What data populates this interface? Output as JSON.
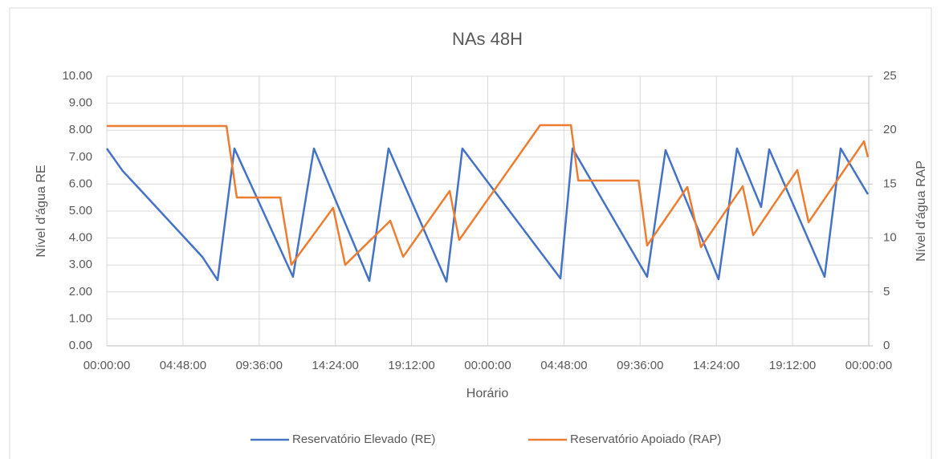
{
  "chart_data": {
    "type": "line",
    "title": "NAs 48H",
    "xlabel": "Horário",
    "ylabel": "Nível d'água RE",
    "y2label": "Nível d'água RAP",
    "xlim": [
      0,
      48
    ],
    "xticks": [
      {
        "value": 0,
        "label": "00:00:00"
      },
      {
        "value": 4.8,
        "label": "04:48:00"
      },
      {
        "value": 9.6,
        "label": "09:36:00"
      },
      {
        "value": 14.4,
        "label": "14:24:00"
      },
      {
        "value": 19.2,
        "label": "19:12:00"
      },
      {
        "value": 24,
        "label": "00:00:00"
      },
      {
        "value": 28.8,
        "label": "04:48:00"
      },
      {
        "value": 33.6,
        "label": "09:36:00"
      },
      {
        "value": 38.4,
        "label": "14:24:00"
      },
      {
        "value": 43.2,
        "label": "19:12:00"
      },
      {
        "value": 48,
        "label": "00:00:00"
      }
    ],
    "ylim": [
      0,
      10
    ],
    "yticks": [
      {
        "value": 0,
        "label": "0.00"
      },
      {
        "value": 1,
        "label": "1.00"
      },
      {
        "value": 2,
        "label": "2.00"
      },
      {
        "value": 3,
        "label": "3.00"
      },
      {
        "value": 4,
        "label": "4.00"
      },
      {
        "value": 5,
        "label": "5.00"
      },
      {
        "value": 6,
        "label": "6.00"
      },
      {
        "value": 7,
        "label": "7.00"
      },
      {
        "value": 8,
        "label": "8.00"
      },
      {
        "value": 9,
        "label": "9.00"
      },
      {
        "value": 10,
        "label": "10.00"
      }
    ],
    "y2lim": [
      0,
      25
    ],
    "y2ticks": [
      0,
      5,
      10,
      15,
      20,
      25
    ],
    "grid": true,
    "legend": "bottom",
    "series": [
      {
        "name": "Reservatório Elevado (RE)",
        "color": "#4472c4",
        "axis": "y",
        "x": [
          0,
          1.0,
          2.28,
          6.02,
          6.98,
          8.04,
          11.73,
          13.05,
          16.54,
          17.75,
          21.4,
          22.4,
          28.58,
          29.34,
          34.04,
          35.2,
          38.54,
          39.7,
          41.22,
          41.73,
          45.22,
          46.23,
          47.95
        ],
        "values": [
          7.32,
          6.49,
          5.68,
          3.3,
          2.44,
          7.32,
          2.56,
          7.32,
          2.41,
          7.32,
          2.38,
          7.32,
          2.5,
          7.32,
          2.56,
          7.26,
          2.47,
          7.32,
          5.15,
          7.29,
          2.56,
          7.32,
          5.62
        ]
      },
      {
        "name": "Reservatório Apoiado (RAP)",
        "color": "#ed7d31",
        "axis": "y2",
        "x": [
          0,
          7.54,
          8.19,
          10.93,
          11.63,
          14.26,
          15.02,
          17.86,
          18.67,
          21.6,
          22.2,
          27.3,
          29.24,
          29.7,
          33.5,
          34.04,
          36.57,
          37.43,
          40.06,
          40.72,
          43.5,
          44.21,
          47.7,
          47.95
        ],
        "values": [
          20.39,
          20.39,
          13.76,
          13.76,
          7.51,
          12.8,
          7.51,
          11.6,
          8.26,
          14.36,
          9.82,
          20.46,
          20.46,
          15.33,
          15.33,
          9.3,
          14.73,
          9.15,
          14.8,
          10.27,
          16.3,
          11.46,
          18.97,
          17.49
        ]
      }
    ]
  }
}
